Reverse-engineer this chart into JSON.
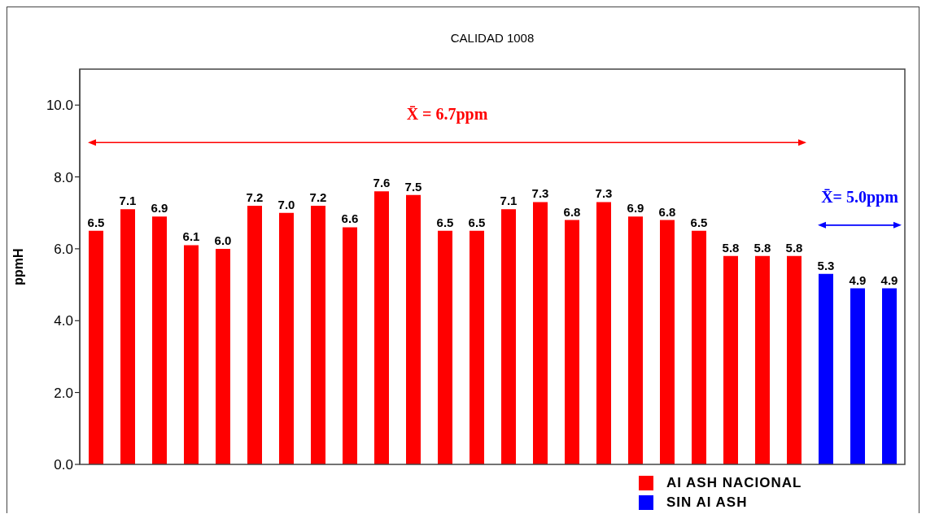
{
  "chart_data": {
    "type": "bar",
    "title": "CALIDAD 1008",
    "ylabel": "ppmH",
    "categories": [
      null,
      null,
      null,
      null,
      null,
      null,
      null,
      null,
      null,
      null,
      null,
      null,
      null,
      null,
      null,
      null,
      null,
      null,
      null,
      null,
      null,
      null,
      null,
      null,
      null,
      null
    ],
    "stacked": true,
    "series": [
      {
        "name": "AI ASH NACIONAL",
        "color": "#ff0000",
        "values": [
          6.5,
          7.1,
          6.9,
          6.1,
          6.0,
          7.2,
          7.0,
          7.2,
          6.6,
          7.6,
          7.5,
          6.5,
          6.5,
          7.1,
          7.3,
          6.8,
          7.3,
          6.9,
          6.8,
          6.5,
          5.8,
          5.8,
          5.8,
          null,
          null,
          null
        ],
        "value_labels": [
          "6.5",
          "7.1",
          "6.9",
          "6.1",
          "6.0",
          "7.2",
          "7.0",
          "7.2",
          "6.6",
          "7.6",
          "7.5",
          "6.5",
          "6.5",
          "7.1",
          "7.3",
          "6.8",
          "7.3",
          "6.9",
          "6.8",
          "6.5",
          "5.8",
          "5.8",
          "5.8",
          null,
          null,
          null
        ]
      },
      {
        "name": "SIN AI ASH",
        "color": "#0000ff",
        "values": [
          null,
          null,
          null,
          null,
          null,
          null,
          null,
          null,
          null,
          null,
          null,
          null,
          null,
          null,
          null,
          null,
          null,
          null,
          null,
          null,
          null,
          null,
          null,
          5.3,
          4.9,
          4.9
        ],
        "value_labels": [
          null,
          null,
          null,
          null,
          null,
          null,
          null,
          null,
          null,
          null,
          null,
          null,
          null,
          null,
          null,
          null,
          null,
          null,
          null,
          null,
          null,
          null,
          null,
          "5.3",
          "4.9",
          "4.9"
        ]
      }
    ],
    "ylim": [
      0,
      11
    ],
    "yticks": [
      {
        "value": 0,
        "label": "0.0"
      },
      {
        "value": 2,
        "label": "2.0"
      },
      {
        "value": 4,
        "label": "4.0"
      },
      {
        "value": 6,
        "label": "6.0"
      },
      {
        "value": 8,
        "label": "8.0"
      },
      {
        "value": 10,
        "label": "10.0"
      }
    ],
    "tick_labels": "y",
    "annotations": [
      "X̄ = 6.7ppm",
      "X̄= 5.0ppm"
    ],
    "legend": "bottom right"
  }
}
